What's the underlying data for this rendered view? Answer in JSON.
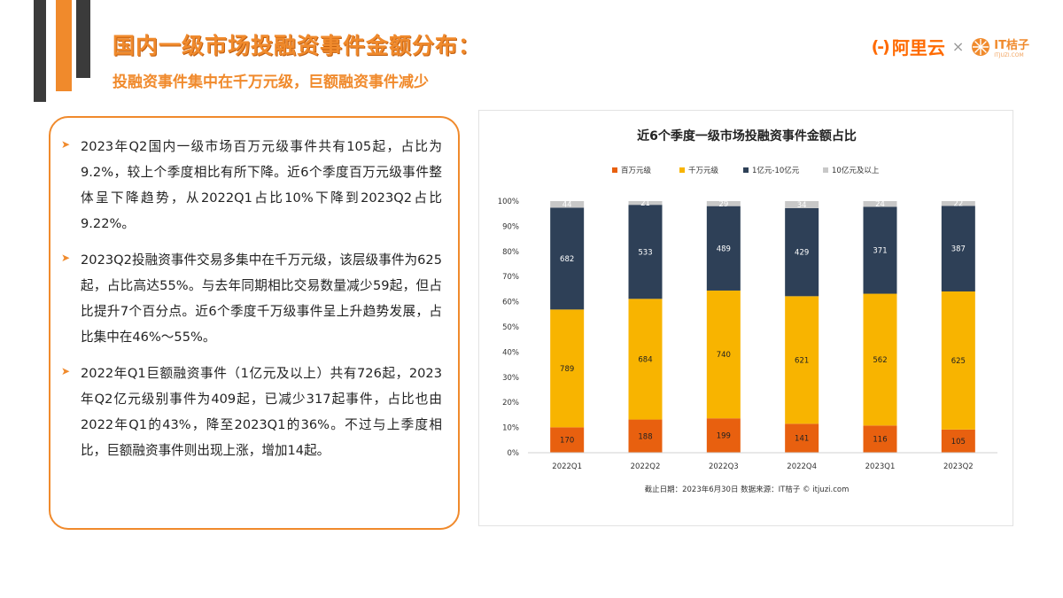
{
  "header": {
    "title": "国内一级市场投融资事件金额分布：",
    "subtitle": "投融资事件集中在千万元级，巨额融资事件减少"
  },
  "logos": {
    "aliyun_mark": "(-)",
    "aliyun_text": "阿里云",
    "separator": "×",
    "itjuzi_text": "IT桔子",
    "itjuzi_sub": "ITJUZI.COM"
  },
  "paragraphs": [
    "2023年Q2国内一级市场百万元级事件共有105起，占比为9.2%，较上个季度相比有所下降。近6个季度百万元级事件整体呈下降趋势，从2022Q1占比10%下降到2023Q2占比9.22%。",
    "2023Q2投融资事件交易多集中在千万元级，该层级事件为625起，占比高达55%。与去年同期相比交易数量减少59起，但占比提升7个百分点。近6个季度千万级事件呈上升趋势发展，占比集中在46%～55%。",
    "2022年Q1巨额融资事件（1亿元及以上）共有726起，2023年Q2亿元级别事件为409起，已减少317起事件，占比也由2022年Q1的43%，降至2023Q1的36%。不过与上季度相比，巨额融资事件则出现上涨，增加14起。"
  ],
  "colors": {
    "accent": "#f08a2c",
    "dark": "#3b3b3b"
  },
  "chart_data": {
    "type": "bar",
    "stacked": "percent",
    "title": "近6个季度一级市场投融资事件金额占比",
    "categories": [
      "2022Q1",
      "2022Q2",
      "2022Q3",
      "2022Q4",
      "2023Q1",
      "2023Q2"
    ],
    "series": [
      {
        "name": "百万元级",
        "color": "#e8600f",
        "values": [
          170,
          188,
          199,
          141,
          116,
          105
        ]
      },
      {
        "name": "千万元级",
        "color": "#f8b400",
        "values": [
          789,
          684,
          740,
          621,
          562,
          625
        ]
      },
      {
        "name": "1亿元-10亿元",
        "color": "#2e4057",
        "values": [
          682,
          533,
          489,
          429,
          371,
          387
        ]
      },
      {
        "name": "10亿元及以上",
        "color": "#c8c8c8",
        "values": [
          44,
          21,
          29,
          34,
          24,
          22
        ]
      }
    ],
    "yticks": [
      "0%",
      "10%",
      "20%",
      "30%",
      "40%",
      "50%",
      "60%",
      "70%",
      "80%",
      "90%",
      "100%"
    ],
    "ylim": [
      0,
      100
    ],
    "legend_position": "top",
    "grid": false,
    "footnote": "截止日期：2023年6月30日    数据来源：IT桔子 © itjuzi.com"
  }
}
